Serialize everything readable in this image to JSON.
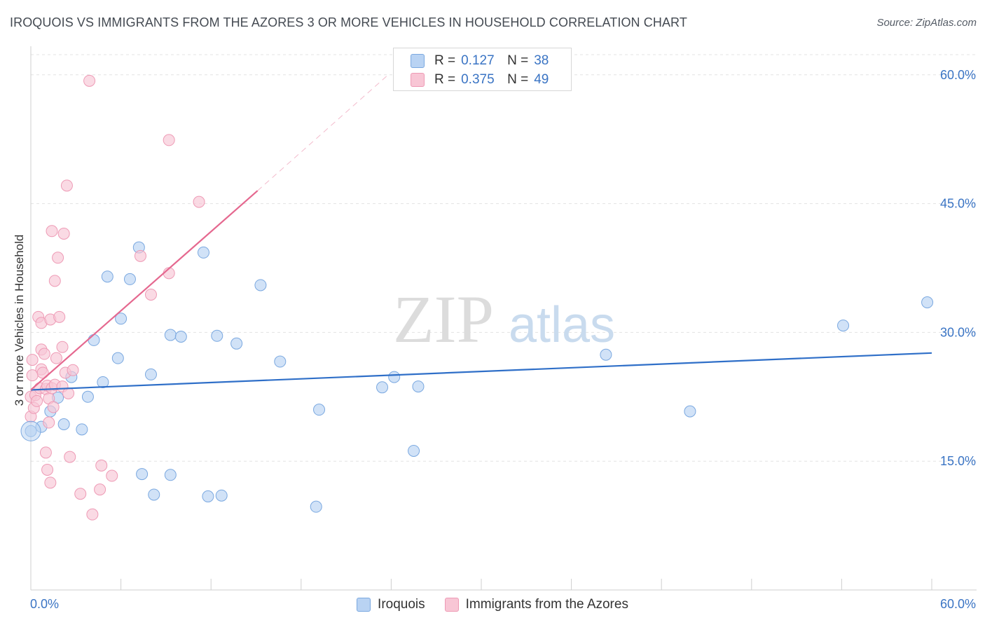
{
  "header": {
    "title": "IROQUOIS VS IMMIGRANTS FROM THE AZORES 3 OR MORE VEHICLES IN HOUSEHOLD CORRELATION CHART",
    "source": "Source: ZipAtlas.com"
  },
  "stats": [
    {
      "r_label": "R =",
      "r_value": "0.127",
      "n_label": "N =",
      "n_value": "38"
    },
    {
      "r_label": "R =",
      "r_value": "0.375",
      "n_label": "N =",
      "n_value": "49"
    }
  ],
  "watermark": {
    "zip": "ZIP",
    "atlas": "atlas"
  },
  "colors": {
    "blue_fill": "#b9d3f3",
    "blue_stroke": "#7aa8e0",
    "blue_line": "#2f6fc8",
    "pink_fill": "#f8c6d5",
    "pink_stroke": "#ee9ab5",
    "pink_line": "#e5688f",
    "tick_text": "#3a74c4",
    "grid": "#e3e3e3"
  },
  "chart_data": {
    "type": "scatter",
    "title": "IROQUOIS VS IMMIGRANTS FROM THE AZORES 3 OR MORE VEHICLES IN HOUSEHOLD CORRELATION CHART",
    "xlabel": "",
    "ylabel": "3 or more Vehicles in Household",
    "xlim": [
      0,
      60
    ],
    "ylim": [
      0,
      63
    ],
    "x_tick_labels": [
      "0.0%",
      "60.0%"
    ],
    "y_ticks": [
      15,
      30,
      45,
      60
    ],
    "y_tick_labels": [
      "15.0%",
      "30.0%",
      "45.0%",
      "60.0%"
    ],
    "legend_position": "bottom-center",
    "series": [
      {
        "name": "Iroquois",
        "color": "blue",
        "trend": {
          "x": [
            0,
            60
          ],
          "y": [
            23.3,
            27.6
          ]
        },
        "points": [
          [
            0.0,
            18.5
          ],
          [
            0.7,
            19.0
          ],
          [
            1.3,
            20.8
          ],
          [
            1.8,
            22.4
          ],
          [
            2.2,
            19.3
          ],
          [
            2.7,
            24.8
          ],
          [
            3.4,
            18.7
          ],
          [
            3.8,
            22.5
          ],
          [
            4.2,
            29.1
          ],
          [
            4.8,
            24.2
          ],
          [
            5.1,
            36.5
          ],
          [
            5.8,
            27.0
          ],
          [
            6.0,
            31.6
          ],
          [
            6.6,
            36.2
          ],
          [
            7.4,
            13.5
          ],
          [
            7.2,
            39.9
          ],
          [
            8.2,
            11.1
          ],
          [
            8.0,
            25.1
          ],
          [
            9.3,
            29.7
          ],
          [
            9.3,
            13.4
          ],
          [
            10.0,
            29.5
          ],
          [
            11.5,
            39.3
          ],
          [
            11.8,
            10.9
          ],
          [
            12.4,
            29.6
          ],
          [
            12.7,
            11.0
          ],
          [
            13.7,
            28.7
          ],
          [
            15.3,
            35.5
          ],
          [
            16.6,
            26.6
          ],
          [
            19.0,
            9.7
          ],
          [
            19.2,
            21.0
          ],
          [
            23.4,
            23.6
          ],
          [
            24.2,
            24.8
          ],
          [
            25.5,
            16.2
          ],
          [
            25.8,
            23.7
          ],
          [
            38.3,
            27.4
          ],
          [
            43.9,
            20.8
          ],
          [
            54.1,
            30.8
          ],
          [
            59.7,
            33.5
          ]
        ]
      },
      {
        "name": "Immigrants from the Azores",
        "color": "pink",
        "trend": {
          "x": [
            0.0,
            15.1
          ],
          "y": [
            23.3,
            46.5
          ]
        },
        "trend_extension": {
          "x": [
            15.1,
            23.8
          ],
          "y": [
            46.5,
            60.0
          ]
        },
        "points": [
          [
            0.0,
            20.2
          ],
          [
            0.0,
            22.5
          ],
          [
            0.1,
            26.8
          ],
          [
            0.1,
            25.0
          ],
          [
            0.2,
            21.2
          ],
          [
            0.3,
            22.7
          ],
          [
            0.4,
            22.0
          ],
          [
            0.5,
            31.8
          ],
          [
            0.6,
            23.5
          ],
          [
            0.7,
            25.7
          ],
          [
            0.7,
            31.1
          ],
          [
            0.7,
            28.0
          ],
          [
            0.8,
            25.3
          ],
          [
            0.9,
            27.5
          ],
          [
            1.0,
            23.4
          ],
          [
            1.1,
            23.8
          ],
          [
            1.1,
            14.0
          ],
          [
            1.0,
            16.0
          ],
          [
            1.2,
            22.3
          ],
          [
            1.2,
            19.5
          ],
          [
            1.3,
            12.5
          ],
          [
            1.3,
            31.5
          ],
          [
            1.4,
            23.5
          ],
          [
            1.5,
            21.3
          ],
          [
            1.4,
            41.8
          ],
          [
            1.6,
            36.0
          ],
          [
            1.6,
            23.9
          ],
          [
            1.7,
            27.0
          ],
          [
            1.8,
            38.7
          ],
          [
            1.9,
            31.8
          ],
          [
            2.1,
            23.7
          ],
          [
            2.1,
            28.3
          ],
          [
            2.2,
            41.5
          ],
          [
            2.3,
            25.3
          ],
          [
            2.4,
            47.1
          ],
          [
            2.5,
            22.9
          ],
          [
            2.6,
            15.5
          ],
          [
            2.8,
            25.6
          ],
          [
            3.3,
            11.2
          ],
          [
            3.9,
            59.3
          ],
          [
            4.1,
            8.8
          ],
          [
            4.6,
            11.7
          ],
          [
            4.7,
            14.5
          ],
          [
            5.4,
            13.3
          ],
          [
            7.3,
            38.9
          ],
          [
            8.0,
            34.4
          ],
          [
            9.2,
            52.4
          ],
          [
            9.2,
            36.9
          ],
          [
            11.2,
            45.2
          ]
        ]
      }
    ]
  },
  "legend": {
    "items": [
      {
        "label": "Iroquois",
        "color": "blue"
      },
      {
        "label": "Immigrants from the Azores",
        "color": "pink"
      }
    ]
  }
}
